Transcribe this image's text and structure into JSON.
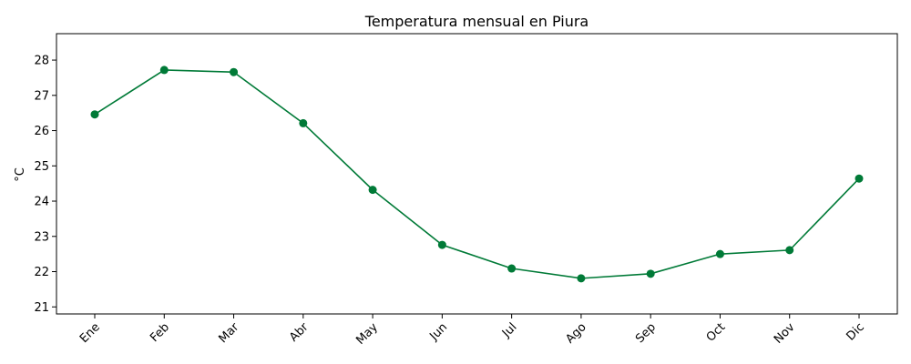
{
  "chart_data": {
    "type": "line",
    "title": "Temperatura mensual en Piura",
    "xlabel": "",
    "ylabel": "°C",
    "categories": [
      "Ene",
      "Feb",
      "Mar",
      "Abr",
      "May",
      "Jun",
      "Jul",
      "Ago",
      "Sep",
      "Oct",
      "Nov",
      "Dic"
    ],
    "series": [
      {
        "values": [
          26.46,
          27.72,
          27.66,
          26.21,
          24.32,
          22.76,
          22.09,
          21.81,
          21.94,
          22.5,
          22.61,
          24.64
        ],
        "color": "#007a37",
        "marker": "circle"
      }
    ],
    "ylim": [
      20.8,
      28.75
    ],
    "yticks": [
      21,
      22,
      23,
      24,
      25,
      26,
      27,
      28
    ],
    "grid": false,
    "legend": "none"
  }
}
